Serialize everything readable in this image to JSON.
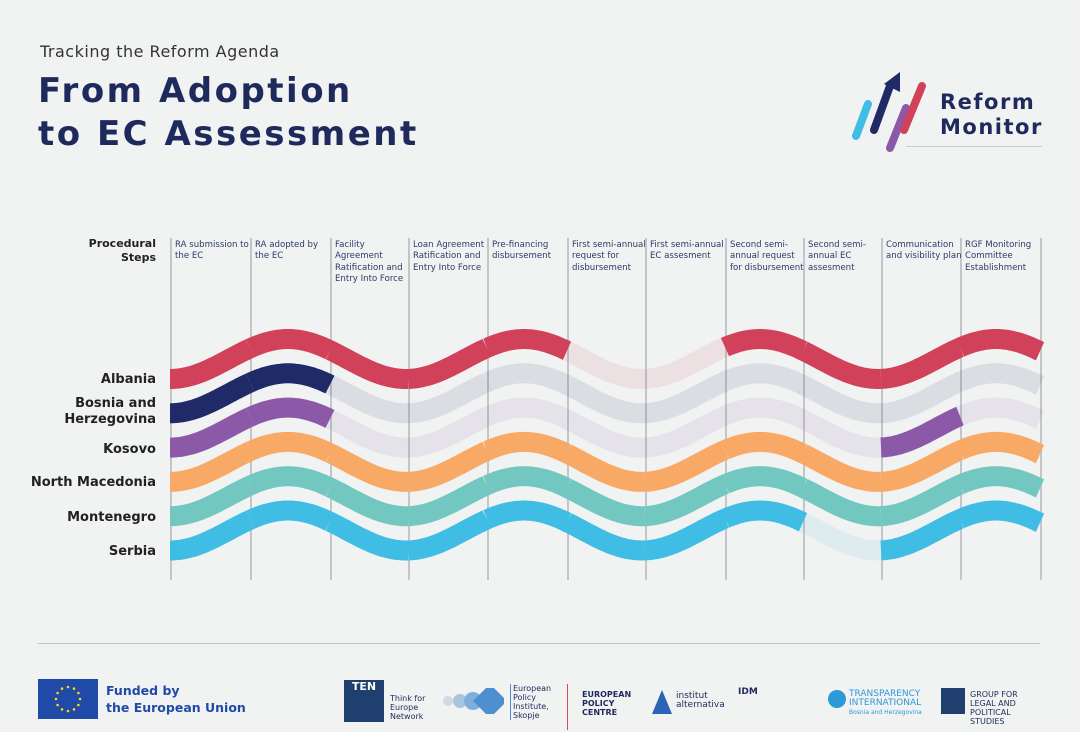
{
  "header": {
    "subtitle": "Tracking the Reform Agenda",
    "title_line1": "From Adoption",
    "title_line2": "to EC Assessment"
  },
  "logo": {
    "line1": "Reform",
    "line2": "Monitor"
  },
  "steps_label": {
    "line1": "Procedural",
    "line2": "Steps"
  },
  "steps": [
    "RA submission to the EC",
    "RA adopted by the EC",
    "Facility Agreement Ratification and Entry Into Force",
    "Loan Agreement Ratification and Entry Into Force",
    "Pre-financing disbursement",
    "First semi-annual request for disbursement",
    "First semi-annual EC assesment",
    "Second semi-annual request for disbursement",
    "Second semi-annual EC assesment",
    "Communication and visibility plan",
    "RGF Monitoring Committee Establishment"
  ],
  "countries": [
    {
      "name": "Albania",
      "color": "#d1415a",
      "completed": [
        true,
        true,
        true,
        true,
        true,
        false,
        false,
        true,
        true,
        true,
        true
      ]
    },
    {
      "name": "Bosnia and Herzegovina",
      "color": "#1f2a66",
      "completed": [
        true,
        true,
        false,
        false,
        false,
        false,
        false,
        false,
        false,
        false,
        false
      ]
    },
    {
      "name": "Kosovo",
      "color": "#8b59a8",
      "completed": [
        true,
        true,
        false,
        false,
        false,
        false,
        false,
        false,
        false,
        true,
        false
      ]
    },
    {
      "name": "North Macedonia",
      "color": "#f9a966",
      "completed": [
        true,
        true,
        true,
        true,
        true,
        true,
        true,
        true,
        true,
        true,
        true
      ]
    },
    {
      "name": "Montenegro",
      "color": "#72c8c0",
      "completed": [
        true,
        true,
        true,
        true,
        true,
        true,
        true,
        true,
        true,
        true,
        true
      ]
    },
    {
      "name": "Serbia",
      "color": "#3fbde5",
      "completed": [
        true,
        true,
        true,
        true,
        true,
        true,
        true,
        true,
        false,
        true,
        true
      ]
    }
  ],
  "footer": {
    "funded_line1": "Funded by",
    "funded_line2": "the European Union",
    "partners": [
      "TEN",
      "Think for Europe Network",
      "European Policy Institute, Skopje",
      "EUROPEAN POLICY CENTRE",
      "institut alternativa",
      "IDM",
      "TRANSPARENCY INTERNATIONAL",
      "Bosnia and Herzegovina",
      "GROUP FOR LEGAL AND POLITICAL STUDIES"
    ]
  }
}
